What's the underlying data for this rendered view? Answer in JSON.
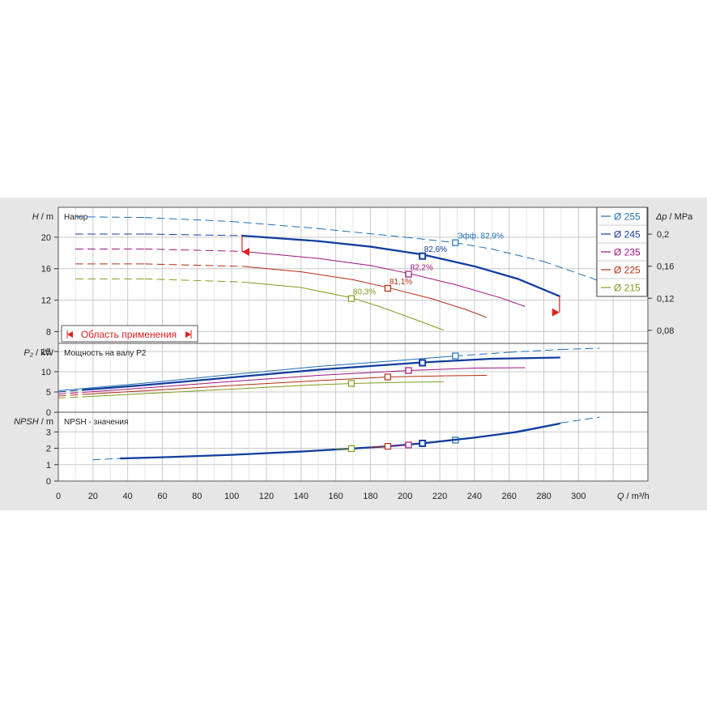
{
  "chart_data": {
    "type": "line",
    "x_axis": {
      "label_symbol": "Q",
      "label_unit": "m³/h",
      "range": [
        0,
        340
      ],
      "ticks": [
        "0",
        "20",
        "40",
        "60",
        "80",
        "100",
        "120",
        "140",
        "160",
        "180",
        "200",
        "220",
        "240",
        "260",
        "280",
        "300"
      ]
    },
    "panels": [
      {
        "id": "head",
        "title": "Напор",
        "y_label_symbol": "H",
        "y_label_unit": "m",
        "y_range": [
          6.5,
          23.8
        ],
        "y_ticks": [
          "8",
          "12",
          "16",
          "20"
        ],
        "right_axis": {
          "label_symbol": "Δp",
          "label_unit": "MPa",
          "ticks": [
            "0,08",
            "0,12",
            "0,16",
            "0,2"
          ]
        },
        "range_label": "Область применения",
        "series": [
          {
            "name": "Ø 255",
            "color": "#1f6fb5",
            "weight": "normal",
            "dashed_x": [
              [
                10,
                322
              ]
            ],
            "x": [
              10,
              50,
              100,
              150,
              200,
              229,
              250,
              280,
              310,
              322
            ],
            "y": [
              22.6,
              22.5,
              22.0,
              21.1,
              20.0,
              19.3,
              18.5,
              16.9,
              14.6,
              13.6
            ],
            "marker": {
              "x": 229,
              "y": 19.3,
              "label": "Эфф.  82,9%"
            }
          },
          {
            "name": "Ø 245",
            "color": "#123e9e",
            "weight": "bold",
            "dashed_x": [
              [
                10,
                106
              ]
            ],
            "x": [
              10,
              50,
              106,
              150,
              180,
              210,
              240,
              265,
              289
            ],
            "y": [
              20.4,
              20.4,
              20.2,
              19.5,
              18.8,
              17.8,
              16.3,
              14.7,
              12.5
            ],
            "marker": {
              "x": 210,
              "y": 17.6,
              "label": "82,6%"
            }
          },
          {
            "name": "Ø 235",
            "color": "#a0147d",
            "weight": "normal",
            "dashed_x": [
              [
                10,
                106
              ]
            ],
            "x": [
              10,
              50,
              106,
              150,
              180,
              202,
              230,
              255,
              269
            ],
            "y": [
              18.5,
              18.5,
              18.2,
              17.3,
              16.4,
              15.4,
              13.9,
              12.3,
              11.2
            ],
            "marker": {
              "x": 202,
              "y": 15.3,
              "label": "82,2%"
            }
          },
          {
            "name": "Ø 225",
            "color": "#b42d0f",
            "weight": "normal",
            "dashed_x": [
              [
                10,
                106
              ]
            ],
            "x": [
              10,
              50,
              106,
              140,
              170,
              190,
              215,
              235,
              247
            ],
            "y": [
              16.6,
              16.6,
              16.3,
              15.6,
              14.6,
              13.6,
              12.2,
              10.8,
              9.8
            ],
            "marker": {
              "x": 190,
              "y": 13.5,
              "label": "81,1%"
            }
          },
          {
            "name": "Ø 215",
            "color": "#7f9d1e",
            "weight": "normal",
            "dashed_x": [
              [
                10,
                106
              ]
            ],
            "x": [
              10,
              50,
              106,
              140,
              169,
              185,
              205,
              222
            ],
            "y": [
              14.7,
              14.7,
              14.3,
              13.6,
              12.3,
              11.2,
              9.6,
              8.2
            ],
            "marker": {
              "x": 169,
              "y": 12.2,
              "label": "80,3%"
            }
          }
        ]
      },
      {
        "id": "power",
        "title": "Мощность на валу P2",
        "y_label_symbol": "P₂",
        "y_label_unit": "kW",
        "y_range": [
          0,
          17
        ],
        "y_ticks": [
          "0",
          "5",
          "10",
          "15"
        ],
        "series": [
          {
            "name": "Ø 255",
            "color": "#1f6fb5",
            "weight": "normal",
            "dashed_x": [
              [
                229,
                312
              ]
            ],
            "x": [
              0,
              50,
              100,
              150,
              200,
              229,
              260,
              290,
              312
            ],
            "y": [
              5.3,
              7.2,
              9.3,
              11.3,
              12.9,
              13.9,
              14.8,
              15.5,
              15.8
            ],
            "marker": {
              "x": 229,
              "y": 13.9
            }
          },
          {
            "name": "Ø 245",
            "color": "#123e9e",
            "weight": "bold",
            "dashed_x": [
              [
                0,
                14
              ]
            ],
            "x": [
              0,
              14,
              50,
              100,
              150,
              210,
              250,
              289
            ],
            "y": [
              5.0,
              5.5,
              6.7,
              8.6,
              10.5,
              12.3,
              13.2,
              13.5
            ],
            "marker": {
              "x": 210,
              "y": 12.2
            }
          },
          {
            "name": "Ø 235",
            "color": "#a0147d",
            "weight": "normal",
            "dashed_x": [
              [
                0,
                14
              ]
            ],
            "x": [
              0,
              14,
              50,
              100,
              150,
              202,
              240,
              269
            ],
            "y": [
              4.5,
              4.9,
              6.0,
              7.6,
              9.1,
              10.3,
              10.9,
              11.0
            ],
            "marker": {
              "x": 202,
              "y": 10.3
            }
          },
          {
            "name": "Ø 225",
            "color": "#b42d0f",
            "weight": "normal",
            "dashed_x": [
              [
                0,
                14
              ]
            ],
            "x": [
              0,
              14,
              50,
              100,
              150,
              190,
              225,
              247
            ],
            "y": [
              4.0,
              4.4,
              5.3,
              6.6,
              7.8,
              8.7,
              9.0,
              9.1
            ],
            "marker": {
              "x": 190,
              "y": 8.7
            }
          },
          {
            "name": "Ø 215",
            "color": "#7f9d1e",
            "weight": "normal",
            "dashed_x": [
              [
                0,
                14
              ]
            ],
            "x": [
              0,
              14,
              50,
              100,
              140,
              169,
              200,
              222
            ],
            "y": [
              3.5,
              3.8,
              4.6,
              5.7,
              6.6,
              7.1,
              7.4,
              7.5
            ],
            "marker": {
              "x": 169,
              "y": 7.1
            }
          }
        ]
      },
      {
        "id": "npsh",
        "title": "NPSH - значения",
        "y_label_symbol": "NPSH",
        "y_label_unit": "m",
        "y_range": [
          0,
          4.2
        ],
        "y_ticks": [
          "0",
          "1",
          "2",
          "3"
        ],
        "series": [
          {
            "name": "Ø 255",
            "color": "#1f6fb5",
            "weight": "normal",
            "dashed_x": [
              [
                20,
                36
              ],
              [
                290,
                312
              ]
            ],
            "x": [
              20,
              36,
              80,
              120,
              160,
              200,
              229,
              260,
              290,
              312
            ],
            "y": [
              1.3,
              1.38,
              1.52,
              1.68,
              1.9,
              2.2,
              2.5,
              2.95,
              3.55,
              3.9
            ],
            "marker": {
              "x": 229,
              "y": 2.5
            }
          },
          {
            "name": "Ø 245",
            "color": "#123e9e",
            "weight": "bold",
            "dashed_x": [],
            "x": [
              36,
              60,
              100,
              140,
              169,
              190,
              210,
              240,
              265,
              289
            ],
            "y": [
              1.38,
              1.45,
              1.6,
              1.8,
              1.98,
              2.12,
              2.3,
              2.65,
              3.0,
              3.5
            ],
            "marker": {
              "x": 210,
              "y": 2.3
            }
          },
          {
            "name": "Ø 235",
            "color": "#a0147d",
            "weight": "normal",
            "dashed_x": [],
            "x": [
              190,
              202
            ],
            "y": [
              2.12,
              2.2
            ],
            "marker": {
              "x": 202,
              "y": 2.2
            }
          },
          {
            "name": "Ø 225",
            "color": "#b42d0f",
            "weight": "normal",
            "dashed_x": [],
            "x": [
              180,
              190
            ],
            "y": [
              2.06,
              2.12
            ],
            "marker": {
              "x": 190,
              "y": 2.12
            }
          },
          {
            "name": "Ø 215",
            "color": "#7f9d1e",
            "weight": "normal",
            "dashed_x": [],
            "x": [
              160,
              169
            ],
            "y": [
              1.93,
              1.98
            ],
            "marker": {
              "x": 169,
              "y": 1.98
            }
          }
        ]
      }
    ],
    "legend": {
      "placement": "top-right",
      "entries": [
        {
          "label": "Ø 255",
          "color": "#1f6fb5"
        },
        {
          "label": "Ø 245",
          "color": "#123e9e"
        },
        {
          "label": "Ø 235",
          "color": "#a0147d"
        },
        {
          "label": "Ø 225",
          "color": "#b42d0f"
        },
        {
          "label": "Ø 215",
          "color": "#7f9d1e"
        }
      ]
    },
    "operating_range": {
      "q_min": 106,
      "q_max": 289,
      "color": "#e02020"
    },
    "grid": true
  }
}
